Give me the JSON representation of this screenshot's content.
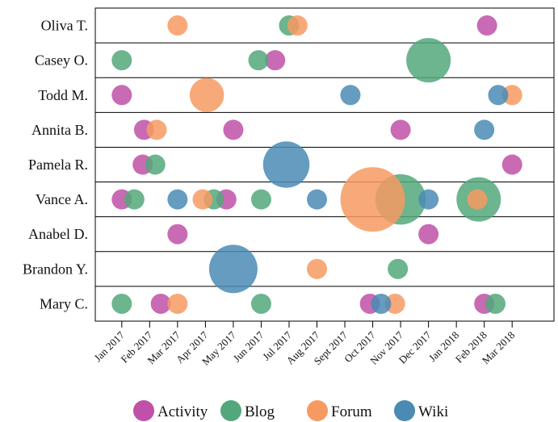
{
  "chart_data": {
    "type": "scatter",
    "rows": [
      "Oliva T.",
      "Casey O.",
      "Todd M.",
      "Annita B.",
      "Pamela R.",
      "Vance A.",
      "Anabel D.",
      "Brandon Y.",
      "Mary C."
    ],
    "x_ticks": [
      "Jan 2017",
      "Feb 2017",
      "Mar 2017",
      "Apr 2017",
      "May 2017",
      "Jun 2017",
      "Jul 2017",
      "Aug 2017",
      "Sept 2017",
      "Oct 2017",
      "Nov 2017",
      "Dec 2017",
      "Jan 2018",
      "Feb 2018",
      "Mar 2018"
    ],
    "x_range": [
      -0.95,
      15.5
    ],
    "legend_position": "bottom",
    "series": [
      {
        "name": "Activity",
        "color": "#c050a8",
        "points": [
          {
            "row": "Oliva T.",
            "x": 13.1,
            "size": 1
          },
          {
            "row": "Casey O.",
            "x": 5.5,
            "size": 1
          },
          {
            "row": "Todd M.",
            "x": 0.0,
            "size": 1
          },
          {
            "row": "Annita B.",
            "x": 0.8,
            "size": 1
          },
          {
            "row": "Annita B.",
            "x": 4.0,
            "size": 1
          },
          {
            "row": "Annita B.",
            "x": 10.0,
            "size": 1
          },
          {
            "row": "Pamela R.",
            "x": 0.75,
            "size": 1
          },
          {
            "row": "Pamela R.",
            "x": 14.0,
            "size": 1
          },
          {
            "row": "Vance A.",
            "x": 0.0,
            "size": 1
          },
          {
            "row": "Vance A.",
            "x": 3.75,
            "size": 1
          },
          {
            "row": "Anabel D.",
            "x": 2.0,
            "size": 1
          },
          {
            "row": "Anabel D.",
            "x": 11.0,
            "size": 1
          },
          {
            "row": "Mary C.",
            "x": 1.4,
            "size": 1
          },
          {
            "row": "Mary C.",
            "x": 8.9,
            "size": 1
          },
          {
            "row": "Mary C.",
            "x": 13.0,
            "size": 1
          }
        ]
      },
      {
        "name": "Blog",
        "color": "#52a87a",
        "points": [
          {
            "row": "Oliva T.",
            "x": 6.0,
            "size": 1
          },
          {
            "row": "Casey O.",
            "x": 0.0,
            "size": 1
          },
          {
            "row": "Casey O.",
            "x": 4.9,
            "size": 1
          },
          {
            "row": "Casey O.",
            "x": 11.0,
            "size": 2.2
          },
          {
            "row": "Pamela R.",
            "x": 1.2,
            "size": 1
          },
          {
            "row": "Vance A.",
            "x": 0.45,
            "size": 1
          },
          {
            "row": "Vance A.",
            "x": 3.3,
            "size": 1
          },
          {
            "row": "Vance A.",
            "x": 5.0,
            "size": 1
          },
          {
            "row": "Vance A.",
            "x": 10.0,
            "size": 2.5
          },
          {
            "row": "Vance A.",
            "x": 12.8,
            "size": 2.2
          },
          {
            "row": "Brandon Y.",
            "x": 9.9,
            "size": 1
          },
          {
            "row": "Mary C.",
            "x": 0.0,
            "size": 1
          },
          {
            "row": "Mary C.",
            "x": 5.0,
            "size": 1
          },
          {
            "row": "Mary C.",
            "x": 13.4,
            "size": 1
          }
        ]
      },
      {
        "name": "Forum",
        "color": "#f79a62",
        "points": [
          {
            "row": "Oliva T.",
            "x": 2.0,
            "size": 1
          },
          {
            "row": "Oliva T.",
            "x": 6.3,
            "size": 1
          },
          {
            "row": "Todd M.",
            "x": 3.05,
            "size": 1.7
          },
          {
            "row": "Todd M.",
            "x": 14.0,
            "size": 1
          },
          {
            "row": "Annita B.",
            "x": 1.25,
            "size": 1
          },
          {
            "row": "Vance A.",
            "x": 2.9,
            "size": 1
          },
          {
            "row": "Vance A.",
            "x": 9.0,
            "size": 3.2
          },
          {
            "row": "Vance A.",
            "x": 12.75,
            "size": 1
          },
          {
            "row": "Brandon Y.",
            "x": 7.0,
            "size": 1
          },
          {
            "row": "Mary C.",
            "x": 2.0,
            "size": 1
          },
          {
            "row": "Mary C.",
            "x": 9.8,
            "size": 1
          }
        ]
      },
      {
        "name": "Wiki",
        "color": "#4a8bb5",
        "points": [
          {
            "row": "Todd M.",
            "x": 8.2,
            "size": 1
          },
          {
            "row": "Todd M.",
            "x": 13.5,
            "size": 1
          },
          {
            "row": "Annita B.",
            "x": 13.0,
            "size": 1
          },
          {
            "row": "Pamela R.",
            "x": 5.9,
            "size": 2.3
          },
          {
            "row": "Vance A.",
            "x": 2.0,
            "size": 1
          },
          {
            "row": "Vance A.",
            "x": 7.0,
            "size": 1
          },
          {
            "row": "Vance A.",
            "x": 11.0,
            "size": 1
          },
          {
            "row": "Brandon Y.",
            "x": 4.0,
            "size": 2.4
          },
          {
            "row": "Mary C.",
            "x": 9.3,
            "size": 1
          }
        ]
      }
    ]
  }
}
